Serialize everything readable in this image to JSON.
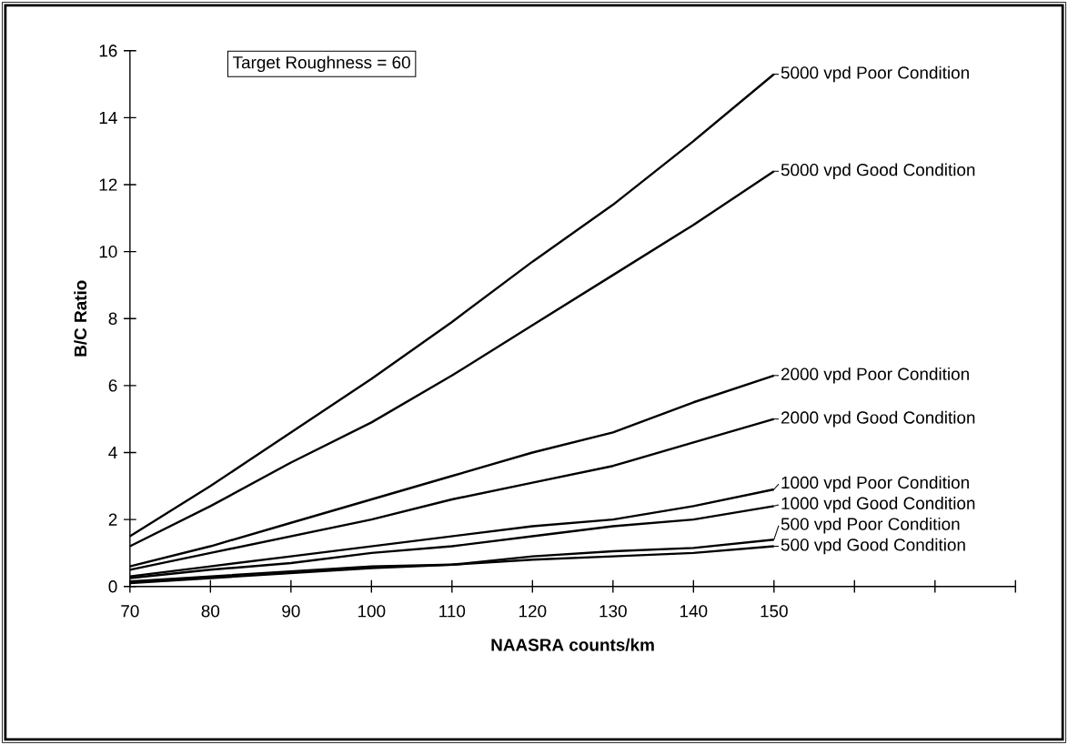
{
  "chart_data": {
    "type": "line",
    "xlabel": "NAASRA counts/km",
    "ylabel": "B/C Ratio",
    "annotations": [
      "Target Roughness = 60"
    ],
    "x": [
      70,
      80,
      90,
      100,
      110,
      120,
      130,
      140,
      150
    ],
    "xlim": [
      70,
      180
    ],
    "xticks": [
      70,
      80,
      90,
      100,
      110,
      120,
      130,
      140,
      150,
      {
        "value": 160,
        "label": null
      },
      {
        "value": 170,
        "label": null
      },
      {
        "value": 180,
        "label": null
      }
    ],
    "ylim": [
      0,
      16
    ],
    "yticks": [
      0,
      2,
      4,
      6,
      8,
      10,
      12,
      14,
      16
    ],
    "marker": "none",
    "line_style": "solid",
    "legend": "right",
    "series": [
      {
        "name": "5000 vpd Poor Condition",
        "color": "#000000",
        "values": [
          1.5,
          3.0,
          4.6,
          6.2,
          7.9,
          9.7,
          11.4,
          13.3,
          15.3
        ]
      },
      {
        "name": "5000 vpd Good Condition",
        "color": "#000000",
        "values": [
          1.2,
          2.4,
          3.7,
          4.9,
          6.3,
          7.8,
          9.3,
          10.8,
          12.4
        ]
      },
      {
        "name": "2000 vpd Poor Condition",
        "color": "#000000",
        "values": [
          0.6,
          1.2,
          1.9,
          2.6,
          3.3,
          4.0,
          4.6,
          5.5,
          6.3
        ]
      },
      {
        "name": "2000 vpd Good Condition",
        "color": "#000000",
        "values": [
          0.5,
          1.0,
          1.5,
          2.0,
          2.6,
          3.1,
          3.6,
          4.3,
          5.0
        ]
      },
      {
        "name": "1000 vpd Poor Condition",
        "color": "#000000",
        "values": [
          0.3,
          0.6,
          0.9,
          1.2,
          1.5,
          1.8,
          2.0,
          2.4,
          2.9
        ]
      },
      {
        "name": "1000 vpd Good Condition",
        "color": "#000000",
        "values": [
          0.25,
          0.5,
          0.7,
          1.0,
          1.2,
          1.5,
          1.8,
          2.0,
          2.4
        ]
      },
      {
        "name": "500 vpd Poor Condition",
        "color": "#000000",
        "values": [
          0.15,
          0.3,
          0.45,
          0.6,
          0.65,
          0.9,
          1.05,
          1.15,
          1.4
        ]
      },
      {
        "name": "500 vpd Good Condition",
        "color": "#000000",
        "values": [
          0.1,
          0.25,
          0.4,
          0.55,
          0.65,
          0.8,
          0.9,
          1.0,
          1.2
        ]
      }
    ]
  }
}
